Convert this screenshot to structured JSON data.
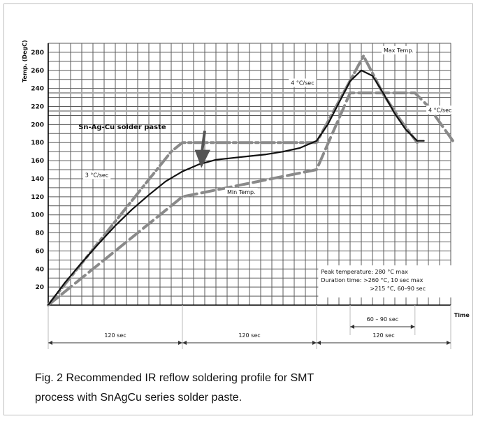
{
  "chart_data": {
    "type": "line",
    "title": "",
    "xlabel": "Time",
    "ylabel": "Temp. (DegC)",
    "xlim": [
      0,
      360
    ],
    "ylim": [
      0,
      290
    ],
    "y_ticks": [
      20,
      40,
      60,
      80,
      100,
      120,
      140,
      160,
      180,
      200,
      220,
      240,
      260,
      280
    ],
    "grid": true,
    "reference_lines": [
      235,
      215
    ],
    "series": [
      {
        "name": "Sn-Ag-Cu solder paste",
        "style": "solid",
        "color": "#111111",
        "x": [
          0,
          15,
          30,
          45,
          60,
          75,
          90,
          105,
          120,
          135,
          150,
          165,
          180,
          195,
          210,
          225,
          240,
          250,
          260,
          270,
          280,
          290,
          300,
          310,
          320,
          330,
          336
        ],
        "y": [
          0,
          25,
          47,
          68,
          88,
          106,
          122,
          137,
          148,
          156,
          161,
          163,
          165,
          167,
          170,
          174,
          182,
          200,
          224,
          248,
          260,
          254,
          234,
          212,
          194,
          182,
          182
        ]
      },
      {
        "name": "Max Temp.",
        "style": "dash-dot",
        "color": "#8a8a8a",
        "x": [
          0,
          110,
          120,
          240,
          282,
          300,
          315,
          330
        ],
        "y": [
          0,
          170,
          180,
          180,
          276,
          233,
          205,
          180
        ]
      },
      {
        "name": "Min Temp.",
        "style": "dashed",
        "color": "#8a8a8a",
        "x": [
          0,
          120,
          240,
          270,
          328,
          340,
          363
        ],
        "y": [
          0,
          120,
          150,
          235,
          235,
          220,
          180
        ]
      }
    ],
    "annotations": {
      "ramp_left": "3 °C/sec",
      "ramp_up": "4 °C/sec",
      "ramp_down": "4 °C/sec",
      "paste_label": "Sn-Ag-Cu solder paste",
      "max_label": "Max Temp.",
      "min_label": "Min Temp.",
      "peak_note": [
        "Peak temperature: 280 °C max",
        "Duration time: >260 °C, 10 sec max",
        ">215 °C, 60–90 sec"
      ]
    },
    "time_spans": [
      {
        "from": 0,
        "to": 120,
        "label": "120 sec"
      },
      {
        "from": 120,
        "to": 240,
        "label": "120 sec"
      },
      {
        "from": 240,
        "to": 360,
        "label": "120 sec"
      },
      {
        "from": 270,
        "to": 328,
        "label": "60 – 90 sec"
      }
    ]
  },
  "caption": {
    "line1": "Fig. 2 Recommended IR reflow soldering profile for SMT",
    "line2": "process with SnAgCu series solder paste."
  }
}
